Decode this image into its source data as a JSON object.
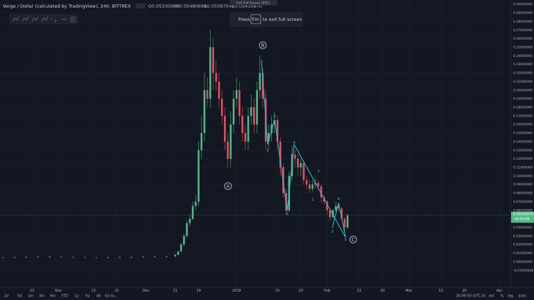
{
  "header": {
    "symbol": "Verge / Dollar (calculated by TradingView), 240, BITTREX",
    "ohlc": [
      "O0.05330980",
      "H0.05480698",
      "L0.05097048",
      "C0.05435870"
    ],
    "tooltip": "Exit Full Screen (ESC)",
    "notice": [
      "Press",
      "Esc",
      "to exit full screen"
    ]
  },
  "footer": {
    "ranges": [
      "1d",
      "5d",
      "1m",
      "3m",
      "6m",
      "YTD",
      "1y",
      "5y",
      "All",
      "Go to..."
    ],
    "clock": "16:09:50 (UTC-5)",
    "options": [
      "ext",
      "%",
      "log",
      "auto"
    ]
  },
  "chart_data": {
    "type": "candlestick",
    "x": [
      12,
      16,
      20,
      24,
      28,
      32,
      36,
      40,
      44,
      48,
      52,
      56,
      60,
      64,
      68,
      71,
      72,
      73,
      74,
      75,
      76,
      77,
      78,
      79,
      80,
      81,
      82,
      83,
      84,
      85,
      86,
      87,
      88,
      89,
      90,
      91,
      92,
      93,
      94,
      95,
      96,
      97,
      98,
      99,
      100,
      101,
      102,
      103,
      104,
      105,
      106,
      107,
      108,
      109,
      110,
      111,
      112,
      113,
      114,
      115,
      116,
      117,
      118,
      119,
      120,
      121,
      122,
      123,
      124,
      125,
      126,
      127,
      128,
      129,
      130
    ],
    "open": [
      0.0048,
      0.005,
      0.0052,
      0.0055,
      0.0058,
      0.006,
      0.0055,
      0.0052,
      0.005,
      0.0048,
      0.005,
      0.0052,
      0.0055,
      0.0058,
      0.006,
      0.0062,
      0.008,
      0.012,
      0.02,
      0.03,
      0.045,
      0.05,
      0.065,
      0.07,
      0.13,
      0.15,
      0.2,
      0.19,
      0.25,
      0.22,
      0.21,
      0.19,
      0.17,
      0.14,
      0.12,
      0.16,
      0.19,
      0.2,
      0.17,
      0.15,
      0.14,
      0.17,
      0.18,
      0.16,
      0.2,
      0.22,
      0.19,
      0.14,
      0.15,
      0.16,
      0.165,
      0.14,
      0.11,
      0.08,
      0.06,
      0.1,
      0.125,
      0.12,
      0.11,
      0.115,
      0.095,
      0.09,
      0.085,
      0.09,
      0.092,
      0.088,
      0.075,
      0.07,
      0.06,
      0.052,
      0.06,
      0.065,
      0.062,
      0.05,
      0.04
    ],
    "high": [
      0.0058,
      0.006,
      0.0063,
      0.0066,
      0.0068,
      0.0068,
      0.0063,
      0.006,
      0.0058,
      0.0058,
      0.006,
      0.0063,
      0.0066,
      0.0068,
      0.007,
      0.009,
      0.013,
      0.022,
      0.033,
      0.048,
      0.055,
      0.07,
      0.078,
      0.14,
      0.17,
      0.22,
      0.215,
      0.27,
      0.26,
      0.235,
      0.22,
      0.2,
      0.18,
      0.15,
      0.175,
      0.2,
      0.215,
      0.21,
      0.18,
      0.16,
      0.18,
      0.195,
      0.19,
      0.21,
      0.24,
      0.225,
      0.2,
      0.16,
      0.17,
      0.175,
      0.17,
      0.145,
      0.115,
      0.085,
      0.105,
      0.135,
      0.13,
      0.125,
      0.12,
      0.118,
      0.1,
      0.095,
      0.095,
      0.097,
      0.095,
      0.09,
      0.078,
      0.072,
      0.063,
      0.062,
      0.07,
      0.068,
      0.064,
      0.052,
      0.056
    ],
    "low": [
      0.004,
      0.0042,
      0.0044,
      0.0047,
      0.005,
      0.0047,
      0.0044,
      0.0042,
      0.004,
      0.004,
      0.0042,
      0.0044,
      0.0047,
      0.005,
      0.0052,
      0.0058,
      0.0075,
      0.011,
      0.018,
      0.028,
      0.042,
      0.048,
      0.06,
      0.065,
      0.12,
      0.14,
      0.18,
      0.18,
      0.2,
      0.2,
      0.18,
      0.16,
      0.13,
      0.11,
      0.11,
      0.15,
      0.18,
      0.16,
      0.14,
      0.13,
      0.13,
      0.16,
      0.15,
      0.15,
      0.19,
      0.18,
      0.13,
      0.13,
      0.14,
      0.15,
      0.13,
      0.1,
      0.075,
      0.055,
      0.058,
      0.095,
      0.11,
      0.1,
      0.1,
      0.09,
      0.085,
      0.08,
      0.082,
      0.085,
      0.083,
      0.07,
      0.066,
      0.055,
      0.048,
      0.05,
      0.058,
      0.058,
      0.048,
      0.035,
      0.038
    ],
    "close": [
      0.005,
      0.0052,
      0.0055,
      0.0058,
      0.006,
      0.0055,
      0.0052,
      0.005,
      0.0048,
      0.005,
      0.0052,
      0.0055,
      0.0058,
      0.006,
      0.0062,
      0.008,
      0.012,
      0.02,
      0.03,
      0.045,
      0.05,
      0.065,
      0.07,
      0.13,
      0.15,
      0.2,
      0.19,
      0.25,
      0.22,
      0.21,
      0.19,
      0.17,
      0.14,
      0.12,
      0.16,
      0.19,
      0.2,
      0.17,
      0.15,
      0.14,
      0.17,
      0.18,
      0.16,
      0.2,
      0.22,
      0.19,
      0.14,
      0.15,
      0.16,
      0.165,
      0.14,
      0.11,
      0.08,
      0.06,
      0.1,
      0.125,
      0.12,
      0.11,
      0.115,
      0.095,
      0.09,
      0.085,
      0.09,
      0.092,
      0.088,
      0.075,
      0.07,
      0.06,
      0.052,
      0.06,
      0.065,
      0.062,
      0.05,
      0.04,
      0.054
    ],
    "up_color": "#53b987",
    "down_color": "#eb4d5c",
    "xlim": [
      11,
      186
    ],
    "xticks": [
      {
        "value": 22,
        "label": "23"
      },
      {
        "value": 31,
        "label": "Nov"
      },
      {
        "value": 43,
        "label": "13"
      },
      {
        "value": 51,
        "label": "21"
      },
      {
        "value": 61,
        "label": "Dec"
      },
      {
        "value": 71,
        "label": "11"
      },
      {
        "value": 79,
        "label": "19"
      },
      {
        "value": 92,
        "label": "2018"
      },
      {
        "value": 106,
        "label": "15"
      },
      {
        "value": 114,
        "label": "23"
      },
      {
        "value": 123,
        "label": "Feb"
      },
      {
        "value": 134,
        "label": "12"
      },
      {
        "value": 142,
        "label": "20"
      },
      {
        "value": 151,
        "label": "Mar"
      },
      {
        "value": 162,
        "label": "12"
      },
      {
        "value": 170,
        "label": "20"
      },
      {
        "value": 182,
        "label": "Apr"
      }
    ],
    "ylim": [
      -0.03,
      0.305
    ],
    "yticks": [
      {
        "value": 0.3,
        "label": "0.30000000"
      },
      {
        "value": 0.29,
        "label": "0.29000000"
      },
      {
        "value": 0.28,
        "label": "0.28000000"
      },
      {
        "value": 0.27,
        "label": "0.27000000"
      },
      {
        "value": 0.26,
        "label": "0.26000000"
      },
      {
        "value": 0.25,
        "label": "0.25000000"
      },
      {
        "value": 0.24,
        "label": "0.24000000"
      },
      {
        "value": 0.23,
        "label": "0.23000000"
      },
      {
        "value": 0.22,
        "label": "0.22000000"
      },
      {
        "value": 0.21,
        "label": "0.21000000"
      },
      {
        "value": 0.2,
        "label": "0.20000000"
      },
      {
        "value": 0.19,
        "label": "0.19000000"
      },
      {
        "value": 0.18,
        "label": "0.18000000"
      },
      {
        "value": 0.17,
        "label": "0.17000000"
      },
      {
        "value": 0.16,
        "label": "0.16000000"
      },
      {
        "value": 0.15,
        "label": "0.15000000"
      },
      {
        "value": 0.14,
        "label": "0.14000000"
      },
      {
        "value": 0.13,
        "label": "0.13000000"
      },
      {
        "value": 0.12,
        "label": "0.12000000"
      },
      {
        "value": 0.11,
        "label": "0.11000000"
      },
      {
        "value": 0.1,
        "label": "0.10000000"
      },
      {
        "value": 0.09,
        "label": "0.09000000"
      },
      {
        "value": 0.08,
        "label": "0.08000000"
      },
      {
        "value": 0.07,
        "label": "0.07000000"
      },
      {
        "value": 0.06,
        "label": "0.06000000"
      },
      {
        "value": 0.05,
        "label": "0.05000000"
      },
      {
        "value": 0.04,
        "label": "0.04000000"
      },
      {
        "value": 0.03,
        "label": "0.03000000"
      },
      {
        "value": 0.02,
        "label": "0.02000000"
      },
      {
        "value": 0.01,
        "label": "0.01000000"
      },
      {
        "value": 0,
        "label": "0.00000000"
      },
      {
        "value": -0.01,
        "label": "-0.01000000"
      }
    ],
    "grid": true,
    "last_price": {
      "value": 0.0543587,
      "label": "0.05435870",
      "countdown": "00:50:06",
      "color": "#53b987"
    },
    "annotations": [
      "A",
      "B",
      "C",
      "1",
      "2",
      "3",
      "4",
      "1",
      "2",
      "3",
      "4",
      "5"
    ]
  }
}
